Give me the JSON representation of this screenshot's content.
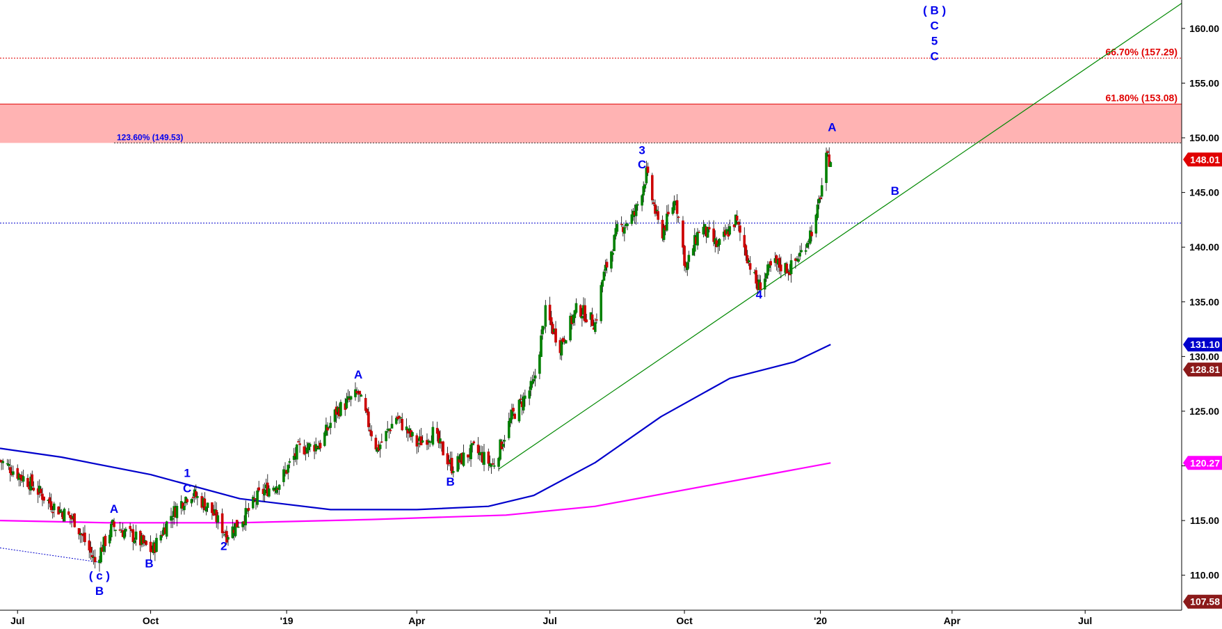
{
  "chart_data": {
    "type": "candlestick",
    "ylim": [
      106.8,
      162.6
    ],
    "y_ticks": [
      "110.00",
      "115.00",
      "120.00",
      "125.00",
      "130.00",
      "135.00",
      "140.00",
      "145.00",
      "150.00",
      "155.00",
      "160.00"
    ],
    "x_ticks": [
      {
        "label": "Jul",
        "date": "2018-07-02"
      },
      {
        "label": "Oct",
        "date": "2018-10-01"
      },
      {
        "label": "'19",
        "date": "2019-01-02"
      },
      {
        "label": "Apr",
        "date": "2019-04-01"
      },
      {
        "label": "Jul",
        "date": "2019-07-01"
      },
      {
        "label": "Oct",
        "date": "2019-10-01"
      },
      {
        "label": "'20",
        "date": "2020-01-02"
      },
      {
        "label": "Apr",
        "date": "2020-04-01"
      },
      {
        "label": "Jul",
        "date": "2020-07-01"
      }
    ],
    "x_range": [
      "2018-06-20",
      "2020-09-05"
    ],
    "price_path": [
      [
        "2018-06-20",
        120.5
      ],
      [
        "2018-07-10",
        118.5
      ],
      [
        "2018-07-25",
        116.5
      ],
      [
        "2018-08-10",
        115.0
      ],
      [
        "2018-08-24",
        111.2
      ],
      [
        "2018-09-05",
        114.5
      ],
      [
        "2018-09-20",
        113.5
      ],
      [
        "2018-10-02",
        112.2
      ],
      [
        "2018-10-15",
        115.5
      ],
      [
        "2018-10-28",
        117.6
      ],
      [
        "2018-11-10",
        116.2
      ],
      [
        "2018-11-22",
        113.7
      ],
      [
        "2018-12-05",
        115.5
      ],
      [
        "2018-12-15",
        117.5
      ],
      [
        "2018-12-28",
        118.5
      ],
      [
        "2019-01-10",
        121.5
      ],
      [
        "2019-01-25",
        122.0
      ],
      [
        "2019-02-05",
        125.0
      ],
      [
        "2019-02-20",
        126.6
      ],
      [
        "2019-03-05",
        121.5
      ],
      [
        "2019-03-18",
        124.5
      ],
      [
        "2019-04-01",
        122.0
      ],
      [
        "2019-04-12",
        123.0
      ],
      [
        "2019-04-25",
        119.9
      ],
      [
        "2019-05-10",
        121.5
      ],
      [
        "2019-05-23",
        120.0
      ],
      [
        "2019-06-05",
        124.5
      ],
      [
        "2019-06-20",
        127.5
      ],
      [
        "2019-06-28",
        134.0
      ],
      [
        "2019-07-08",
        131.0
      ],
      [
        "2019-07-20",
        134.5
      ],
      [
        "2019-08-01",
        133.0
      ],
      [
        "2019-08-06",
        137.0
      ],
      [
        "2019-08-16",
        141.5
      ],
      [
        "2019-08-28",
        143.0
      ],
      [
        "2019-09-05",
        146.7
      ],
      [
        "2019-09-15",
        141.0
      ],
      [
        "2019-09-25",
        144.5
      ],
      [
        "2019-10-02",
        138.0
      ],
      [
        "2019-10-12",
        142.0
      ],
      [
        "2019-10-24",
        140.0
      ],
      [
        "2019-11-05",
        142.5
      ],
      [
        "2019-11-20",
        136.3
      ],
      [
        "2019-12-01",
        138.5
      ],
      [
        "2019-12-12",
        138.0
      ],
      [
        "2019-12-20",
        139.5
      ],
      [
        "2019-12-30",
        142.5
      ],
      [
        "2020-01-06",
        148.0
      ],
      [
        "2020-01-09",
        148.01
      ]
    ],
    "moving_averages": [
      {
        "color": "#0000cc",
        "last_value": "131.10",
        "values": [
          [
            "2018-06-20",
            121.6
          ],
          [
            "2018-08-01",
            120.8
          ],
          [
            "2018-10-01",
            119.2
          ],
          [
            "2018-12-01",
            117.0
          ],
          [
            "2019-02-01",
            116.0
          ],
          [
            "2019-04-01",
            116.0
          ],
          [
            "2019-05-20",
            116.3
          ],
          [
            "2019-06-20",
            117.3
          ],
          [
            "2019-08-01",
            120.3
          ],
          [
            "2019-09-15",
            124.5
          ],
          [
            "2019-11-01",
            128.0
          ],
          [
            "2019-12-15",
            129.5
          ],
          [
            "2020-01-09",
            131.1
          ]
        ]
      },
      {
        "color": "#ff00ff",
        "last_value": "120.27",
        "values": [
          [
            "2018-06-20",
            115.0
          ],
          [
            "2018-09-01",
            114.8
          ],
          [
            "2018-12-01",
            114.8
          ],
          [
            "2019-03-01",
            115.1
          ],
          [
            "2019-06-01",
            115.5
          ],
          [
            "2019-08-01",
            116.3
          ],
          [
            "2019-10-01",
            117.8
          ],
          [
            "2019-12-01",
            119.3
          ],
          [
            "2020-01-09",
            120.27
          ]
        ]
      }
    ],
    "trendline": {
      "color": "#008800",
      "from": [
        "2019-05-27",
        119.7
      ],
      "to": [
        "2020-09-05",
        162.3
      ]
    },
    "dotted_down_line": {
      "color": "#0000cc",
      "from": [
        "2018-06-20",
        112.5
      ],
      "to": [
        "2018-08-26",
        111.2
      ]
    },
    "resistance_zone": [
      149.53,
      153.08
    ],
    "horizontal_lines": [
      {
        "y": 157.29,
        "color": "#e00000",
        "style": "dotted",
        "label": "66.70% (157.29)"
      },
      {
        "y": 153.08,
        "color": "#e00000",
        "style": "solid",
        "label": "61.80% (153.08)"
      },
      {
        "y": 149.53,
        "color": "#333333",
        "style": "dotted",
        "label": "123.60% (149.53)",
        "start": "2018-09-06"
      },
      {
        "y": 142.2,
        "color": "#0000cc",
        "style": "dotted",
        "label": ""
      }
    ],
    "value_tags": [
      {
        "text": "148.01",
        "y": 148.01,
        "color": "#e00000"
      },
      {
        "text": "131.10",
        "y": 131.1,
        "color": "#0000cc"
      },
      {
        "text": "128.81",
        "y": 128.81,
        "color": "#8b1a1a"
      },
      {
        "text": "120.27",
        "y": 120.27,
        "color": "#ff00ff"
      },
      {
        "text": "107.58",
        "y": 107.58,
        "color": "#8b1a1a"
      }
    ],
    "wave_labels": [
      {
        "text": "( c )",
        "date": "2018-08-27",
        "y": 109.6
      },
      {
        "text": "B",
        "date": "2018-08-27",
        "y": 108.2
      },
      {
        "text": "A",
        "date": "2018-09-06",
        "y": 115.7
      },
      {
        "text": "B",
        "date": "2018-09-30",
        "y": 110.7
      },
      {
        "text": "1",
        "date": "2018-10-26",
        "y": 119.0
      },
      {
        "text": "C",
        "date": "2018-10-26",
        "y": 117.6
      },
      {
        "text": "2",
        "date": "2018-11-20",
        "y": 112.3
      },
      {
        "text": "A",
        "date": "2019-02-20",
        "y": 128.0
      },
      {
        "text": "B",
        "date": "2019-04-24",
        "y": 118.2
      },
      {
        "text": "3",
        "date": "2019-09-02",
        "y": 148.5
      },
      {
        "text": "C",
        "date": "2019-09-02",
        "y": 147.2
      },
      {
        "text": "4",
        "date": "2019-11-21",
        "y": 135.3
      },
      {
        "text": "A",
        "date": "2020-01-10",
        "y": 150.6
      },
      {
        "text": "B",
        "date": "2020-02-22",
        "y": 144.8
      },
      {
        "text": "( B )",
        "date": "2020-03-20",
        "y": 161.3
      },
      {
        "text": "C",
        "date": "2020-03-20",
        "y": 159.9
      },
      {
        "text": "5",
        "date": "2020-03-20",
        "y": 158.5
      },
      {
        "text": "C",
        "date": "2020-03-20",
        "y": 157.1
      }
    ]
  }
}
